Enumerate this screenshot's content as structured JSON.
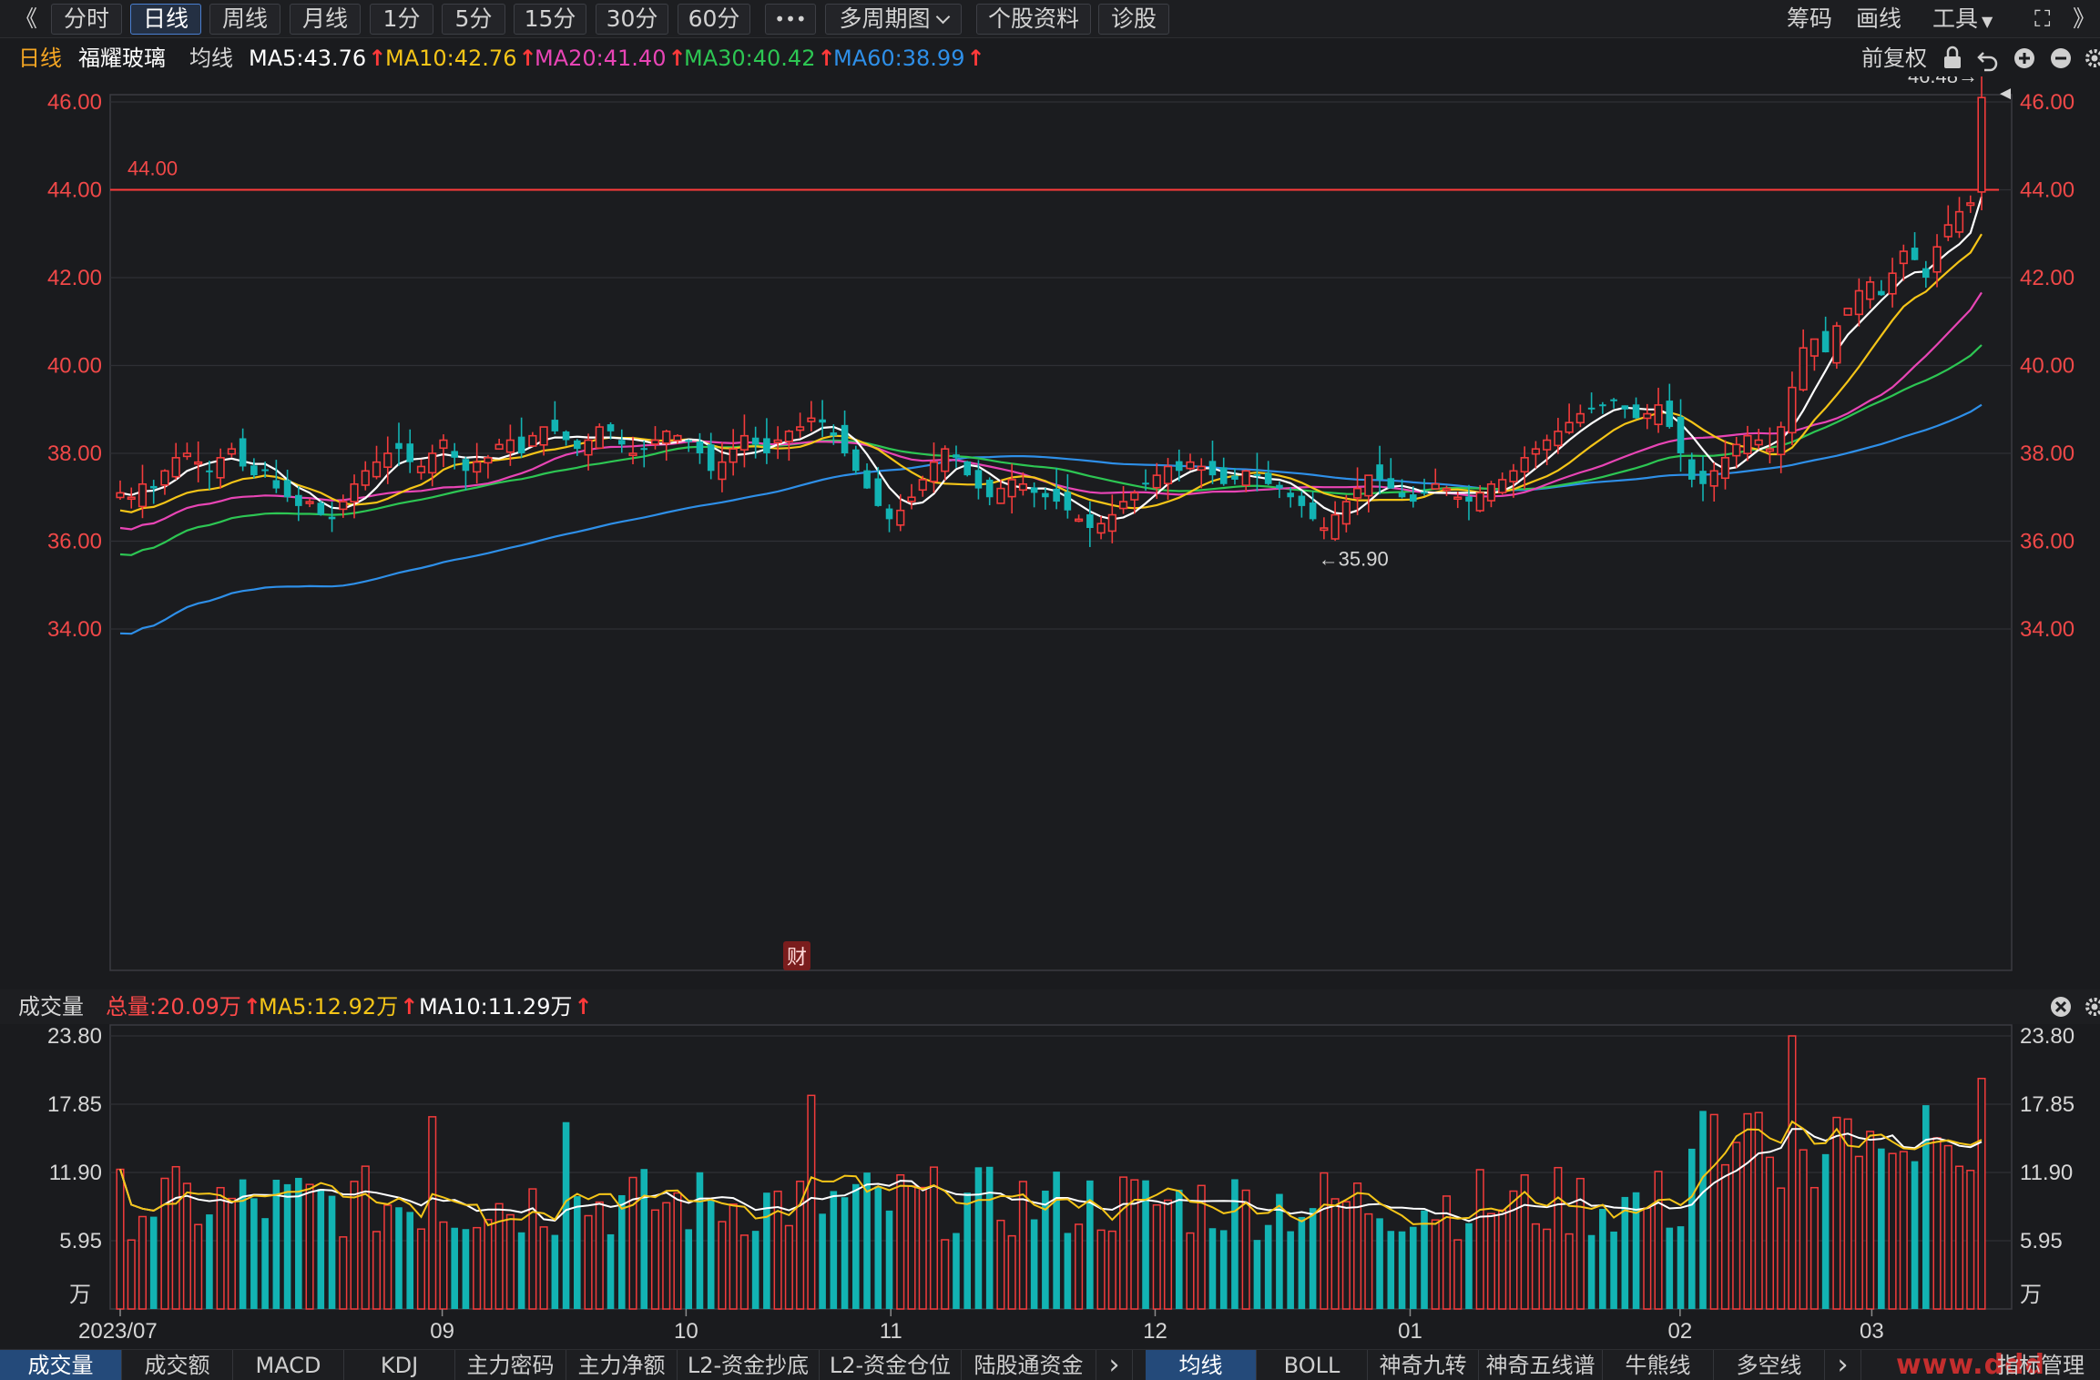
{
  "toolbar": {
    "back_glyph": "《",
    "buttons": [
      {
        "label": "分时"
      },
      {
        "label": "日线"
      },
      {
        "label": "周线"
      },
      {
        "label": "月线"
      },
      {
        "label": "1分"
      },
      {
        "label": "5分"
      },
      {
        "label": "15分"
      },
      {
        "label": "30分"
      },
      {
        "label": "60分"
      }
    ],
    "more": "•••",
    "multi_period": "多周期图",
    "stock_info": "个股资料",
    "diagnose": "诊股",
    "chips": "筹码",
    "draw": "画线",
    "tools": "工具",
    "expand_glyph": "⛶",
    "collapse_glyph": "》"
  },
  "info": {
    "period": "日线",
    "stock_name": "福耀玻璃",
    "avg_label": "均线",
    "ma5": "MA5:43.76",
    "ma10": "MA10:42.76",
    "ma20": "MA20:41.40",
    "ma30": "MA30:40.42",
    "ma60": "MA60:38.99",
    "up_arrow": "↑",
    "adjust": "前复权"
  },
  "price_chart": {
    "y_ticks": [
      "46.00",
      "44.00",
      "42.00",
      "40.00",
      "38.00",
      "36.00",
      "34.00"
    ],
    "ref_line_label": "44.00",
    "high_label": "46.48→",
    "low_label": "←35.90",
    "news_badge": "财"
  },
  "volume": {
    "title": "成交量",
    "total": "总量:20.09万",
    "ma5": "MA5:12.92万",
    "ma10": "MA10:11.29万",
    "y_ticks": [
      "23.80",
      "17.85",
      "11.90",
      "5.95"
    ],
    "unit": "万",
    "x_labels": [
      "2023/07",
      "09",
      "10",
      "11",
      "12",
      "01",
      "02",
      "03"
    ]
  },
  "tabs_left": [
    "成交量",
    "成交额",
    "MACD",
    "KDJ",
    "主力密码",
    "主力净额",
    "L2-资金抄底",
    "L2-资金仓位",
    "陆股通资金"
  ],
  "tabs_right": [
    "均线",
    "BOLL",
    "神奇九转",
    "神奇五线谱",
    "牛熊线",
    "多空线"
  ],
  "tabs_more": "›",
  "indicator_mgmt": "指标管理",
  "watermark": "www.ddd",
  "colors": {
    "background": "#1a1b1e",
    "up": "#f23b3b",
    "down": "#12b3b3",
    "ma5": "#ffffff",
    "ma10": "#f5c518",
    "ma20": "#e845b5",
    "ma30": "#2dc653",
    "ma60": "#2e8fe8",
    "axis_text": "#f04848"
  },
  "chart_data": {
    "type": "candlestick",
    "title": "福耀玻璃 日线",
    "x_range": [
      "2023/07",
      "2024/03"
    ],
    "ylim": [
      33.5,
      47.0
    ],
    "volume_ylim": [
      0,
      23.8
    ],
    "reference_line": 44.0,
    "ma_last": {
      "MA5": 43.76,
      "MA10": 42.76,
      "MA20": 41.4,
      "MA30": 40.42,
      "MA60": 38.99
    },
    "volume_last": {
      "total": 20.09,
      "MA5": 12.92,
      "MA10": 11.29
    },
    "period_high": 46.48,
    "period_low": 35.9,
    "closes": [
      37.1,
      37.0,
      37.3,
      37.2,
      37.6,
      37.9,
      38.0,
      37.8,
      37.6,
      37.9,
      38.1,
      37.7,
      37.5,
      37.6,
      37.2,
      37.0,
      36.8,
      36.9,
      36.6,
      36.5,
      36.9,
      37.3,
      37.6,
      37.8,
      38.0,
      38.1,
      37.8,
      37.7,
      38.0,
      38.3,
      37.9,
      37.6,
      37.8,
      37.9,
      38.2,
      38.3,
      38.0,
      38.4,
      38.6,
      38.5,
      38.3,
      38.1,
      38.3,
      38.6,
      38.5,
      38.2,
      38.0,
      38.1,
      38.3,
      38.5,
      38.4,
      38.3,
      38.0,
      37.6,
      37.8,
      38.1,
      38.4,
      38.2,
      38.0,
      38.3,
      38.5,
      38.6,
      38.8,
      38.7,
      38.4,
      38.0,
      37.6,
      37.2,
      36.8,
      36.5,
      36.7,
      37.0,
      37.4,
      37.8,
      38.1,
      37.9,
      37.5,
      37.2,
      37.0,
      37.2,
      37.4,
      37.3,
      37.1,
      37.0,
      36.9,
      36.7,
      36.5,
      36.3,
      36.4,
      36.6,
      36.9,
      37.1,
      37.3,
      37.5,
      37.7,
      37.6,
      37.8,
      37.7,
      37.5,
      37.3,
      37.4,
      37.6,
      37.5,
      37.3,
      37.2,
      37.0,
      36.8,
      36.5,
      36.3,
      36.6,
      36.9,
      37.2,
      37.5,
      37.4,
      37.2,
      37.0,
      36.9,
      37.1,
      37.3,
      37.2,
      37.0,
      36.9,
      37.1,
      37.3,
      37.4,
      37.6,
      37.9,
      38.1,
      38.3,
      38.5,
      38.7,
      38.9,
      39.0,
      39.1,
      39.2,
      39.0,
      38.8,
      38.9,
      39.1,
      38.6,
      38.0,
      37.4,
      37.3,
      37.6,
      37.9,
      38.2,
      38.4,
      38.3,
      38.1,
      38.6,
      39.5,
      40.4,
      40.6,
      40.3,
      40.9,
      41.3,
      41.7,
      41.9,
      41.6,
      42.1,
      42.6,
      42.4,
      42.0,
      42.7,
      43.2,
      43.5,
      43.7,
      46.1
    ]
  }
}
